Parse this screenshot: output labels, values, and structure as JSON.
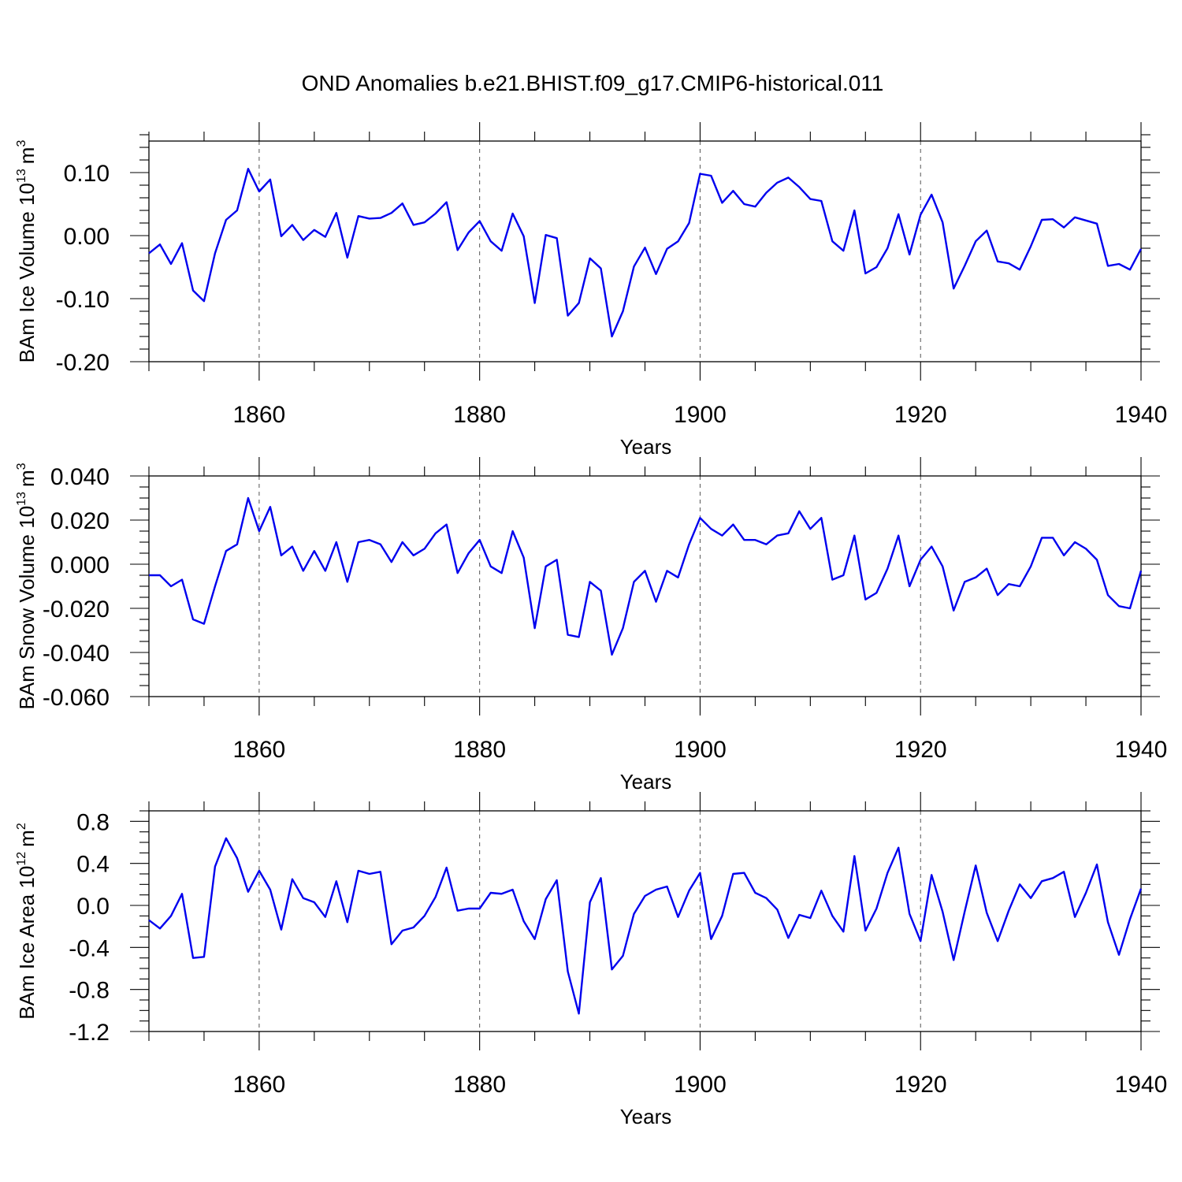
{
  "chart_data": {
    "type": "line",
    "title": "OND Anomalies b.e21.BHIST.f09_g17.CMIP6-historical.011",
    "line_color": "#0000ee",
    "x": [
      1850,
      1851,
      1852,
      1853,
      1854,
      1855,
      1856,
      1857,
      1858,
      1859,
      1860,
      1861,
      1862,
      1863,
      1864,
      1865,
      1866,
      1867,
      1868,
      1869,
      1870,
      1871,
      1872,
      1873,
      1874,
      1875,
      1876,
      1877,
      1878,
      1879,
      1880,
      1881,
      1882,
      1883,
      1884,
      1885,
      1886,
      1887,
      1888,
      1889,
      1890,
      1891,
      1892,
      1893,
      1894,
      1895,
      1896,
      1897,
      1898,
      1899,
      1900,
      1901,
      1902,
      1903,
      1904,
      1905,
      1906,
      1907,
      1908,
      1909,
      1910,
      1911,
      1912,
      1913,
      1914,
      1915,
      1916,
      1917,
      1918,
      1919,
      1920,
      1921,
      1922,
      1923,
      1924,
      1925,
      1926,
      1927,
      1928,
      1929,
      1930,
      1931,
      1932,
      1933,
      1934,
      1935,
      1936,
      1937,
      1938,
      1939,
      1940
    ],
    "panels": [
      {
        "id": "ice-volume",
        "xlabel": "Years",
        "ylabel_main": "BAm Ice Volume 10",
        "ylabel_sup": "13",
        "ylabel_unit": "m",
        "ylabel_unit_sup": "3",
        "xlim": [
          1850,
          1940
        ],
        "ylim": [
          -0.2,
          0.15
        ],
        "x_ticks": [
          1860,
          1880,
          1900,
          1920,
          1940
        ],
        "x_tick_labels": [
          "1860",
          "1880",
          "1900",
          "1920",
          "1940"
        ],
        "y_ticks": [
          0.1,
          0.0,
          -0.1,
          -0.2
        ],
        "y_tick_labels": [
          "0.10",
          "0.00",
          "-0.10",
          "-0.20"
        ],
        "y_minor_step": 0.02,
        "values": [
          -0.028,
          -0.014,
          -0.045,
          -0.012,
          -0.087,
          -0.104,
          -0.028,
          0.025,
          0.04,
          0.106,
          0.07,
          0.089,
          -0.001,
          0.017,
          -0.007,
          0.009,
          -0.002,
          0.036,
          -0.035,
          0.031,
          0.027,
          0.028,
          0.036,
          0.051,
          0.017,
          0.021,
          0.035,
          0.053,
          -0.023,
          0.005,
          0.023,
          -0.009,
          -0.024,
          0.035,
          -0.001,
          -0.107,
          0.001,
          -0.004,
          -0.127,
          -0.107,
          -0.036,
          -0.052,
          -0.16,
          -0.12,
          -0.049,
          -0.019,
          -0.061,
          -0.021,
          -0.009,
          0.02,
          0.098,
          0.095,
          0.052,
          0.071,
          0.05,
          0.046,
          0.068,
          0.084,
          0.092,
          0.077,
          0.058,
          0.055,
          -0.009,
          -0.024,
          0.04,
          -0.06,
          -0.05,
          -0.02,
          0.034,
          -0.03,
          0.033,
          0.065,
          0.021,
          -0.084,
          -0.048,
          -0.009,
          0.008,
          -0.041,
          -0.044,
          -0.054,
          -0.017,
          0.025,
          0.026,
          0.013,
          0.029,
          0.024,
          0.019,
          -0.048,
          -0.045,
          -0.054,
          -0.021
        ]
      },
      {
        "id": "snow-volume",
        "xlabel": "Years",
        "ylabel_main": "BAm Snow Volume 10",
        "ylabel_sup": "13",
        "ylabel_unit": "m",
        "ylabel_unit_sup": "3",
        "xlim": [
          1850,
          1940
        ],
        "ylim": [
          -0.06,
          0.04
        ],
        "x_ticks": [
          1860,
          1880,
          1900,
          1920,
          1940
        ],
        "x_tick_labels": [
          "1860",
          "1880",
          "1900",
          "1920",
          "1940"
        ],
        "y_ticks": [
          0.04,
          0.02,
          0.0,
          -0.02,
          -0.04,
          -0.06
        ],
        "y_tick_labels": [
          "0.040",
          "0.020",
          "0.000",
          "-0.020",
          "-0.040",
          "-0.060"
        ],
        "y_minor_step": 0.005,
        "values": [
          -0.005,
          -0.005,
          -0.01,
          -0.007,
          -0.025,
          -0.027,
          -0.01,
          0.006,
          0.009,
          0.03,
          0.015,
          0.026,
          0.004,
          0.008,
          -0.003,
          0.006,
          -0.003,
          0.01,
          -0.008,
          0.01,
          0.011,
          0.009,
          0.001,
          0.01,
          0.004,
          0.007,
          0.014,
          0.018,
          -0.004,
          0.005,
          0.011,
          -0.001,
          -0.004,
          0.015,
          0.003,
          -0.029,
          -0.001,
          0.002,
          -0.032,
          -0.033,
          -0.008,
          -0.012,
          -0.041,
          -0.029,
          -0.008,
          -0.003,
          -0.017,
          -0.003,
          -0.006,
          0.009,
          0.021,
          0.016,
          0.013,
          0.018,
          0.011,
          0.011,
          0.009,
          0.013,
          0.014,
          0.024,
          0.016,
          0.021,
          -0.007,
          -0.005,
          0.013,
          -0.016,
          -0.013,
          -0.002,
          0.013,
          -0.01,
          0.002,
          0.008,
          -0.001,
          -0.021,
          -0.008,
          -0.006,
          -0.002,
          -0.014,
          -0.009,
          -0.01,
          -0.001,
          0.012,
          0.012,
          0.004,
          0.01,
          0.007,
          0.002,
          -0.014,
          -0.019,
          -0.02,
          -0.003
        ]
      },
      {
        "id": "ice-area",
        "xlabel": "Years",
        "ylabel_main": "BAm Ice Area 10",
        "ylabel_sup": "12",
        "ylabel_unit": "m",
        "ylabel_unit_sup": "2",
        "xlim": [
          1850,
          1940
        ],
        "ylim": [
          -1.2,
          0.9
        ],
        "x_ticks": [
          1860,
          1880,
          1900,
          1920,
          1940
        ],
        "x_tick_labels": [
          "1860",
          "1880",
          "1900",
          "1920",
          "1940"
        ],
        "y_ticks": [
          0.8,
          0.4,
          0.0,
          -0.4,
          -0.8,
          -1.2
        ],
        "y_tick_labels": [
          "0.8",
          "0.4",
          "0.0",
          "-0.4",
          "-0.8",
          "-1.2"
        ],
        "y_minor_step": 0.1,
        "values": [
          -0.14,
          -0.22,
          -0.1,
          0.11,
          -0.5,
          -0.49,
          0.37,
          0.64,
          0.45,
          0.13,
          0.33,
          0.15,
          -0.23,
          0.25,
          0.07,
          0.03,
          -0.11,
          0.23,
          -0.16,
          0.33,
          0.3,
          0.32,
          -0.37,
          -0.24,
          -0.21,
          -0.1,
          0.08,
          0.36,
          -0.05,
          -0.03,
          -0.03,
          0.12,
          0.11,
          0.15,
          -0.15,
          -0.32,
          0.06,
          0.24,
          -0.63,
          -1.03,
          0.03,
          0.26,
          -0.61,
          -0.48,
          -0.08,
          0.09,
          0.15,
          0.18,
          -0.11,
          0.14,
          0.31,
          -0.32,
          -0.1,
          0.3,
          0.31,
          0.12,
          0.07,
          -0.04,
          -0.31,
          -0.09,
          -0.12,
          0.14,
          -0.1,
          -0.25,
          0.47,
          -0.24,
          -0.03,
          0.31,
          0.55,
          -0.08,
          -0.34,
          0.29,
          -0.06,
          -0.52,
          -0.06,
          0.38,
          -0.07,
          -0.34,
          -0.05,
          0.2,
          0.07,
          0.23,
          0.26,
          0.32,
          -0.11,
          0.12,
          0.39,
          -0.16,
          -0.47,
          -0.13,
          0.16
        ]
      }
    ]
  }
}
